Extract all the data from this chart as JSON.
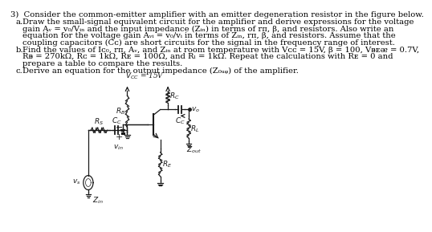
{
  "bg_color": "#ffffff",
  "text_color": "#000000",
  "font_size": 7.2,
  "circuit_color": "#1a1a1a",
  "title": "3)  Consider the common-emitter amplifier with an emitter degeneration resistor in the figure below.",
  "part_a_indent": "    a.  ",
  "part_a_lines": [
    "Draw the small-signal equivalent circuit for the amplifier and derive expressions for the voltage",
    "gain Aᵥ = v₀/Vᵢₙ and the input impedance (Zᵢₙ) in terms of rπ, β, and resistors. Also write an",
    "equation for the voltage gain Aᵥᵢ = v₀/vᵢ in terms of Zᵢₙ, rπ, β, and resistors. Assume that the",
    "coupling capacitors (Cᴄ) are short circuits for the signal in the frequency range of interest."
  ],
  "part_b_indent": "    b.  ",
  "part_b_lines": [
    "Find the values of Iᴄ₀, rπ, Aᵥ, and Zᵢₙ at room temperature with Vᴄᴄ = 15V, β = 100, Vᴃᴇᴂ = 0.7V,",
    "Rᴃ = 270kΩ, Rᴄ = 1kΩ, Rᴇ = 100Ω, and Rₗ = 1kΩ. Repeat the calculations with Rᴇ = 0 and",
    "prepare a table to compare the results."
  ],
  "part_c_indent": "    c.  ",
  "part_c_lines": [
    "Derive an equation for the output impedance (Z₀ᵤᵩ) of the amplifier."
  ],
  "vcc_label": "Vᴄᴄ = 15V"
}
